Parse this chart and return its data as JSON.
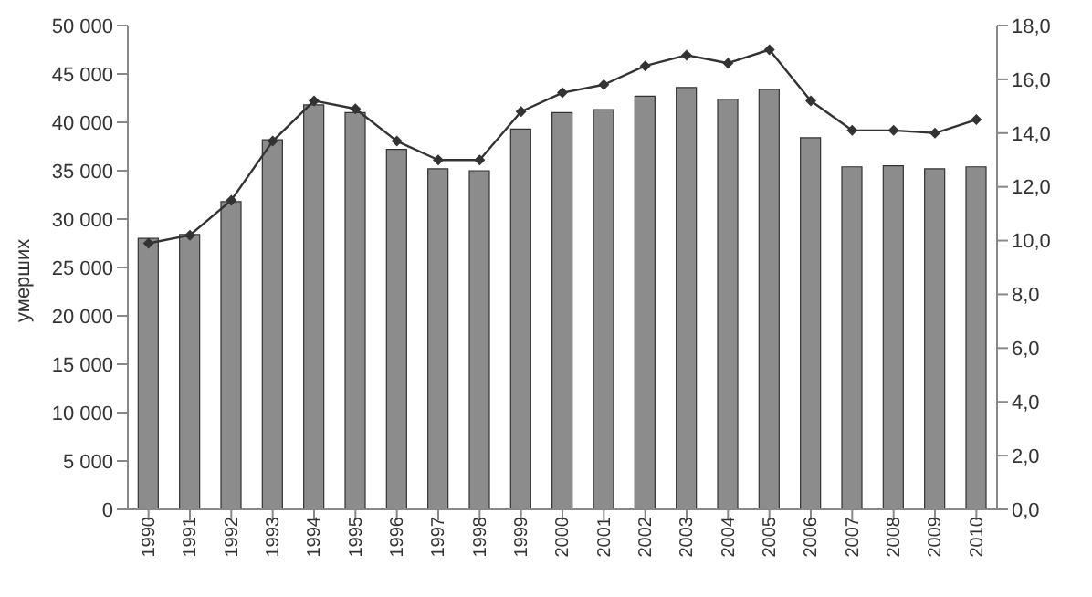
{
  "chart_data": {
    "type": "bar",
    "ylabel": "умерших",
    "categories": [
      "1990",
      "1991",
      "1992",
      "1993",
      "1994",
      "1995",
      "1996",
      "1997",
      "1998",
      "1999",
      "2000",
      "2001",
      "2002",
      "2003",
      "2004",
      "2005",
      "2006",
      "2007",
      "2008",
      "2009",
      "2010"
    ],
    "series": [
      {
        "color": "#8c8c8c",
        "values": [
          28000,
          28400,
          31800,
          38200,
          41800,
          41000,
          37200,
          35200,
          35000,
          39300,
          41000,
          41300,
          42700,
          43600,
          42400,
          43400,
          38400,
          35400,
          35500,
          35200,
          35400
        ]
      },
      {
        "type": "line",
        "axis": "y2",
        "color": "#333333",
        "marker": "diamond",
        "values": [
          9.9,
          10.2,
          11.5,
          13.7,
          15.2,
          14.9,
          13.7,
          13.0,
          13.0,
          14.8,
          15.5,
          15.8,
          16.5,
          16.9,
          16.6,
          17.1,
          15.2,
          14.1,
          14.1,
          14.0,
          14.5
        ]
      }
    ],
    "ylim": [
      0,
      50000
    ],
    "yticks": [
      0,
      {
        "value": 5000,
        "label": "5 000"
      },
      {
        "value": 10000,
        "label": "10 000"
      },
      {
        "value": 15000,
        "label": "15 000"
      },
      {
        "value": 20000,
        "label": "20 000"
      },
      {
        "value": 25000,
        "label": "25 000"
      },
      {
        "value": 30000,
        "label": "30 000"
      },
      {
        "value": 35000,
        "label": "35 000"
      },
      {
        "value": 40000,
        "label": "40 000"
      },
      {
        "value": 45000,
        "label": "45 000"
      },
      {
        "value": 50000,
        "label": "50 000"
      }
    ],
    "y2lim": [
      0,
      18
    ],
    "y2ticks": [
      {
        "value": 0,
        "label": "0,0"
      },
      {
        "value": 2,
        "label": "2,0"
      },
      {
        "value": 4,
        "label": "4,0"
      },
      {
        "value": 6,
        "label": "6,0"
      },
      {
        "value": 8,
        "label": "8,0"
      },
      {
        "value": 10,
        "label": "10,0"
      },
      {
        "value": 12,
        "label": "12,0"
      },
      {
        "value": 14,
        "label": "14,0"
      },
      {
        "value": 16,
        "label": "16,0"
      },
      {
        "value": 18,
        "label": "18,0"
      }
    ],
    "grid": false,
    "legend": false
  }
}
